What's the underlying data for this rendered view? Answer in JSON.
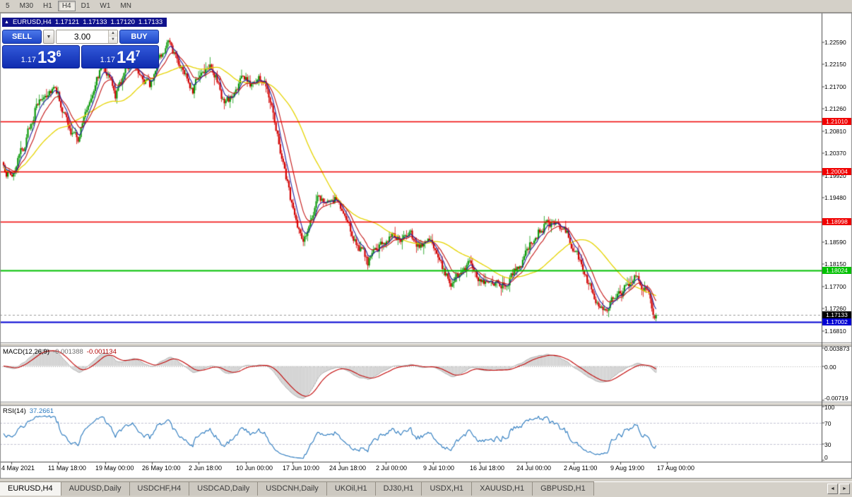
{
  "toolbar": {
    "periods": [
      "5",
      "M30",
      "H1",
      "H4",
      "D1",
      "W1",
      "MN"
    ],
    "active": "H4"
  },
  "title_bar": {
    "symbol_period": "EURUSD,H4",
    "open": "1.17121",
    "high": "1.17133",
    "low": "1.17120",
    "close": "1.17133"
  },
  "trade_panel": {
    "sell_label": "SELL",
    "buy_label": "BUY",
    "volume": "3.00",
    "bid": {
      "big": "1.17",
      "pips": "13",
      "pipette": "6"
    },
    "ask": {
      "big": "1.17",
      "pips": "14",
      "pipette": "7"
    }
  },
  "icons": {
    "collapse_triangle": "▲",
    "dropdown_arrow": "▼",
    "spin_up": "▲",
    "spin_down": "▼",
    "tab_scroll_left": "◄",
    "tab_scroll_right": "►"
  },
  "price_axis": {
    "labels": [
      "1.22590",
      "1.22150",
      "1.21700",
      "1.21260",
      "1.20810",
      "1.20370",
      "1.19920",
      "1.19480",
      "1.18590",
      "1.18150",
      "1.17700",
      "1.17260",
      "1.16810"
    ]
  },
  "date_axis": {
    "labels": [
      "4 May 2021",
      "11 May 18:00",
      "19 May 00:00",
      "26 May 10:00",
      "2 Jun 18:00",
      "10 Jun 00:00",
      "17 Jun 10:00",
      "24 Jun 18:00",
      "2 Jul 00:00",
      "9 Jul 10:00",
      "16 Jul 18:00",
      "24 Jul 00:00",
      "2 Aug 11:00",
      "9 Aug 19:00",
      "17 Aug 00:00"
    ]
  },
  "indicator_panels": {
    "macd": {
      "name": "MACD(12,26,9)",
      "value_main": "-0.001388",
      "value_signal": "-0.001134",
      "scale_top": "0.003873",
      "scale_zero": "0.00",
      "scale_bottom": "-0.00719"
    },
    "rsi": {
      "name": "RSI(14)",
      "value": "37.2661",
      "scale": [
        "100",
        "70",
        "30",
        "0"
      ],
      "levels": [
        70,
        30
      ]
    }
  },
  "tabs": {
    "items": [
      "EURUSD,H4",
      "AUDUSD,Daily",
      "USDCHF,H4",
      "USDCAD,Daily",
      "USDCNH,Daily",
      "UKOil,H1",
      "DJ30,H1",
      "USDX,H1",
      "XAUUSD,H1",
      "GBPUSD,H1"
    ],
    "active": "EURUSD,H4"
  },
  "chart_data": {
    "type": "candlestick",
    "title": "EURUSD,H4",
    "symbol": "EURUSD",
    "timeframe": "H4",
    "current_quote": {
      "open": 1.17121,
      "high": 1.17133,
      "low": 1.1712,
      "close": 1.17133,
      "bid_display": "1.17136",
      "ask_display": "1.17147"
    },
    "y_axis": {
      "min_label": 1.1681,
      "max_label": 1.2259,
      "render_min": 1.166,
      "render_max": 1.231
    },
    "num_candles": 456,
    "close_waypoints": [
      [
        0,
        1.2005
      ],
      [
        6,
        1.1992
      ],
      [
        14,
        1.2048
      ],
      [
        22,
        1.2125
      ],
      [
        30,
        1.216
      ],
      [
        36,
        1.2178
      ],
      [
        42,
        1.212
      ],
      [
        47,
        1.2075
      ],
      [
        52,
        1.2068
      ],
      [
        58,
        1.2125
      ],
      [
        64,
        1.2185
      ],
      [
        70,
        1.222
      ],
      [
        74,
        1.219
      ],
      [
        78,
        1.215
      ],
      [
        84,
        1.2195
      ],
      [
        90,
        1.223
      ],
      [
        96,
        1.22
      ],
      [
        102,
        1.217
      ],
      [
        108,
        1.223
      ],
      [
        114,
        1.2255
      ],
      [
        120,
        1.2235
      ],
      [
        126,
        1.22
      ],
      [
        132,
        1.217
      ],
      [
        138,
        1.22
      ],
      [
        144,
        1.2225
      ],
      [
        148,
        1.219
      ],
      [
        154,
        1.2135
      ],
      [
        160,
        1.215
      ],
      [
        166,
        1.219
      ],
      [
        172,
        1.2175
      ],
      [
        178,
        1.219
      ],
      [
        184,
        1.217
      ],
      [
        188,
        1.213
      ],
      [
        192,
        1.206
      ],
      [
        196,
        1.2005
      ],
      [
        200,
        1.195
      ],
      [
        204,
        1.1895
      ],
      [
        208,
        1.186
      ],
      [
        212,
        1.188
      ],
      [
        216,
        1.1915
      ],
      [
        220,
        1.1945
      ],
      [
        224,
        1.195
      ],
      [
        228,
        1.193
      ],
      [
        232,
        1.1945
      ],
      [
        236,
        1.192
      ],
      [
        242,
        1.188
      ],
      [
        248,
        1.185
      ],
      [
        254,
        1.1818
      ],
      [
        260,
        1.1842
      ],
      [
        266,
        1.1862
      ],
      [
        272,
        1.1882
      ],
      [
        278,
        1.1858
      ],
      [
        284,
        1.1872
      ],
      [
        290,
        1.1855
      ],
      [
        296,
        1.1865
      ],
      [
        302,
        1.184
      ],
      [
        308,
        1.1795
      ],
      [
        314,
        1.1778
      ],
      [
        320,
        1.18
      ],
      [
        326,
        1.1815
      ],
      [
        332,
        1.179
      ],
      [
        338,
        1.1768
      ],
      [
        344,
        1.178
      ],
      [
        350,
        1.1775
      ],
      [
        356,
        1.18
      ],
      [
        362,
        1.1825
      ],
      [
        368,
        1.1855
      ],
      [
        374,
        1.1885
      ],
      [
        380,
        1.1902
      ],
      [
        386,
        1.1888
      ],
      [
        392,
        1.1878
      ],
      [
        398,
        1.1848
      ],
      [
        404,
        1.18
      ],
      [
        410,
        1.1765
      ],
      [
        416,
        1.174
      ],
      [
        422,
        1.1732
      ],
      [
        428,
        1.1746
      ],
      [
        434,
        1.177
      ],
      [
        440,
        1.18
      ],
      [
        444,
        1.1786
      ],
      [
        448,
        1.1758
      ],
      [
        452,
        1.1728
      ],
      [
        455,
        1.17133
      ]
    ],
    "horizontal_levels": [
      {
        "price": 1.2101,
        "label": "1.21010",
        "color": "#f00000",
        "width": 1.5
      },
      {
        "price": 1.20004,
        "label": "1.20004",
        "color": "#f00000",
        "width": 1.5
      },
      {
        "price": 1.18998,
        "label": "1.18998",
        "color": "#f00000",
        "width": 1.5
      },
      {
        "price": 1.18024,
        "label": "1.18024",
        "color": "#00c000",
        "width": 2
      },
      {
        "price": 1.17002,
        "label": "1.17002",
        "color": "#0000d2",
        "width": 2
      }
    ],
    "bid_line": {
      "price": 1.17133,
      "label": "1.17133",
      "color": "#000000"
    },
    "candle_colors": {
      "up": "#0c9a0c",
      "down": "#d20000"
    },
    "moving_averages": [
      {
        "name": "slow-yellow",
        "color": "#e6d400",
        "kind": "sma",
        "period": 45
      },
      {
        "name": "fast-blue",
        "color": "#22229e",
        "kind": "ema",
        "period": 6
      },
      {
        "name": "mid-red",
        "color": "#c41414",
        "kind": "ema",
        "period": 13
      }
    ],
    "indicators": [
      {
        "name": "MACD",
        "params": [
          12,
          26,
          9
        ],
        "values": [
          -0.001388,
          -0.001134
        ],
        "scale_max": 0.003873,
        "scale_min": -0.00719,
        "histogram_color": "#c8c8c8",
        "signal_color": "#c00000"
      },
      {
        "name": "RSI",
        "params": [
          14
        ],
        "value": 37.2661,
        "levels": [
          70,
          30
        ],
        "range": [
          0,
          100
        ],
        "line_color": "#2878be"
      }
    ]
  }
}
